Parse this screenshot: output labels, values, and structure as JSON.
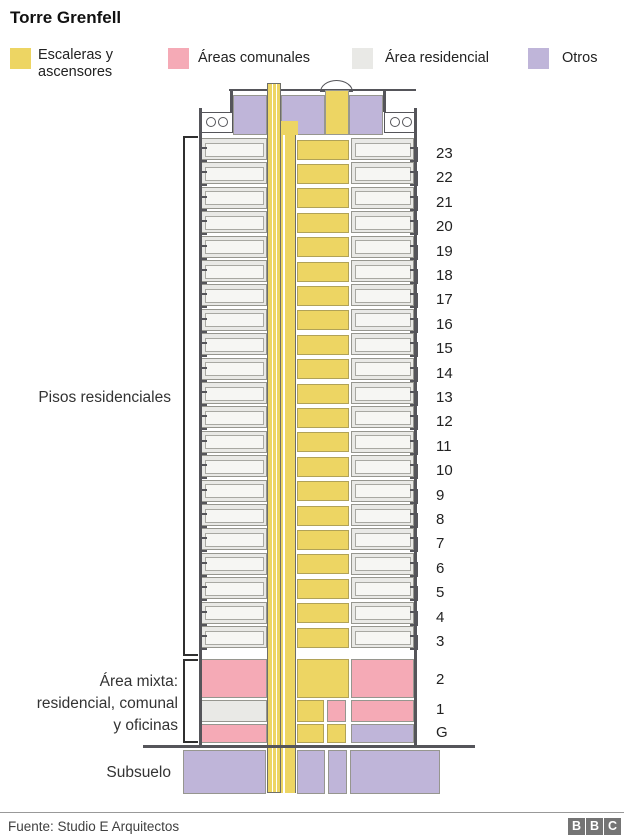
{
  "title": "Torre Grenfell",
  "legend": [
    {
      "key": "escaleras",
      "label": "Escaleras y\nascensores"
    },
    {
      "key": "comunales",
      "label": "Áreas comunales"
    },
    {
      "key": "residencial",
      "label": "Área residencial"
    },
    {
      "key": "otros",
      "label": "Otros"
    }
  ],
  "annotations": {
    "residential_floors": "Pisos residenciales",
    "mixed_area": "Área mixta:\nresidencial, comunal\ny oficinas",
    "basement": "Subsuelo"
  },
  "floors": [
    {
      "label": "23",
      "kind": "residential"
    },
    {
      "label": "22",
      "kind": "residential"
    },
    {
      "label": "21",
      "kind": "residential"
    },
    {
      "label": "20",
      "kind": "residential"
    },
    {
      "label": "19",
      "kind": "residential"
    },
    {
      "label": "18",
      "kind": "residential"
    },
    {
      "label": "17",
      "kind": "residential"
    },
    {
      "label": "16",
      "kind": "residential"
    },
    {
      "label": "15",
      "kind": "residential"
    },
    {
      "label": "14",
      "kind": "residential"
    },
    {
      "label": "13",
      "kind": "residential"
    },
    {
      "label": "12",
      "kind": "residential"
    },
    {
      "label": "11",
      "kind": "residential"
    },
    {
      "label": "10",
      "kind": "residential"
    },
    {
      "label": "9",
      "kind": "residential"
    },
    {
      "label": "8",
      "kind": "residential"
    },
    {
      "label": "7",
      "kind": "residential"
    },
    {
      "label": "6",
      "kind": "residential"
    },
    {
      "label": "5",
      "kind": "residential"
    },
    {
      "label": "4",
      "kind": "residential"
    },
    {
      "label": "3",
      "kind": "residential"
    },
    {
      "label": "2",
      "kind": "mixed-tall",
      "zones": {
        "left": "comunal",
        "core": "escaleras",
        "right": "comunal"
      }
    },
    {
      "label": "1",
      "kind": "mixed",
      "zones": {
        "left": "residencial",
        "coreA": "escaleras",
        "coreB": "comunal",
        "right": "comunal"
      }
    },
    {
      "label": "G",
      "kind": "ground",
      "zones": {
        "left": "comunal",
        "coreA": "escaleras",
        "coreB": "escaleras",
        "right": "otros"
      }
    }
  ],
  "basement_zones": [
    "otros",
    "otros",
    "otros",
    "otros"
  ],
  "core_zones": {
    "lift_shaft": "escaleras",
    "stair_core": "escaleras"
  },
  "colors": {
    "escaleras": "#EDD563",
    "comunales": "#F5AAB6",
    "residencial": "#E9E9E6",
    "residencial_inner": "#F6F6F3",
    "otros": "#BFB5D9",
    "outline": "#55555A",
    "block_border": "#96968F",
    "yellow_border": "#B1A257",
    "text": "#222222",
    "muted": "#404040",
    "divider": "#999999",
    "bbc_gray": "#747474"
  },
  "footer": {
    "source": "Fuente: Studio E Arquitectos",
    "bbc": [
      "B",
      "B",
      "C"
    ]
  }
}
